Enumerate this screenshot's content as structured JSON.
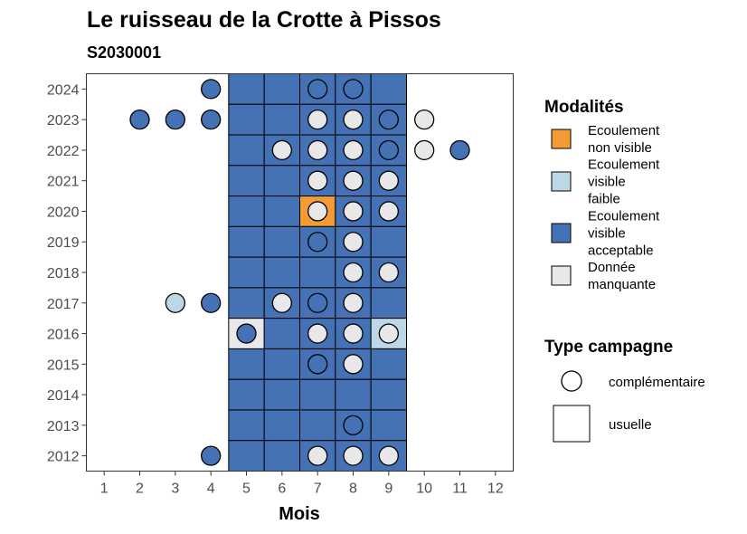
{
  "chart_data": {
    "type": "heatmap",
    "title": "Le ruisseau de la Crotte à Pissos",
    "subtitle": "S2030001",
    "xlabel": "Mois",
    "ylabel": "",
    "x_ticks": [
      "1",
      "2",
      "3",
      "4",
      "5",
      "6",
      "7",
      "8",
      "9",
      "10",
      "11",
      "12"
    ],
    "y_ticks": [
      "2012",
      "2013",
      "2014",
      "2015",
      "2016",
      "2017",
      "2018",
      "2019",
      "2020",
      "2021",
      "2022",
      "2023",
      "2024"
    ],
    "xlim": [
      0.5,
      12.5
    ],
    "ylim": [
      2011.5,
      2024.5
    ],
    "grid": false,
    "legend_placement": "right",
    "colors": {
      "non_visible": "#f39c35",
      "faible": "#bed7e6",
      "acceptable": "#4472b5",
      "manquante": "#e8e8e8"
    },
    "modalites_legend": {
      "title": "Modalités",
      "items": [
        {
          "key": "non_visible",
          "lines": [
            "Ecoulement",
            "non visible"
          ]
        },
        {
          "key": "faible",
          "lines": [
            "Ecoulement",
            "visible",
            "faible"
          ]
        },
        {
          "key": "acceptable",
          "lines": [
            "Ecoulement",
            "visible",
            "acceptable"
          ]
        },
        {
          "key": "manquante",
          "lines": [
            "Donnée",
            "manquante"
          ]
        }
      ]
    },
    "campagne_legend": {
      "title": "Type campagne",
      "items": [
        {
          "shape": "circle",
          "label": "complémentaire"
        },
        {
          "shape": "square",
          "label": "usuelle"
        }
      ]
    },
    "usuelle": [
      {
        "year": 2024,
        "cells": [
          [
            5,
            "acceptable"
          ],
          [
            6,
            "acceptable"
          ],
          [
            7,
            "acceptable"
          ],
          [
            8,
            "acceptable"
          ],
          [
            9,
            "acceptable"
          ]
        ]
      },
      {
        "year": 2023,
        "cells": [
          [
            5,
            "acceptable"
          ],
          [
            6,
            "acceptable"
          ],
          [
            7,
            "acceptable"
          ],
          [
            8,
            "acceptable"
          ],
          [
            9,
            "acceptable"
          ]
        ]
      },
      {
        "year": 2022,
        "cells": [
          [
            5,
            "acceptable"
          ],
          [
            6,
            "acceptable"
          ],
          [
            7,
            "acceptable"
          ],
          [
            8,
            "acceptable"
          ],
          [
            9,
            "acceptable"
          ]
        ]
      },
      {
        "year": 2021,
        "cells": [
          [
            5,
            "acceptable"
          ],
          [
            6,
            "acceptable"
          ],
          [
            7,
            "acceptable"
          ],
          [
            8,
            "acceptable"
          ],
          [
            9,
            "acceptable"
          ]
        ]
      },
      {
        "year": 2020,
        "cells": [
          [
            5,
            "acceptable"
          ],
          [
            6,
            "acceptable"
          ],
          [
            7,
            "non_visible"
          ],
          [
            8,
            "acceptable"
          ],
          [
            9,
            "acceptable"
          ]
        ]
      },
      {
        "year": 2019,
        "cells": [
          [
            5,
            "acceptable"
          ],
          [
            6,
            "acceptable"
          ],
          [
            7,
            "acceptable"
          ],
          [
            8,
            "acceptable"
          ],
          [
            9,
            "acceptable"
          ]
        ]
      },
      {
        "year": 2018,
        "cells": [
          [
            5,
            "acceptable"
          ],
          [
            6,
            "acceptable"
          ],
          [
            7,
            "acceptable"
          ],
          [
            8,
            "acceptable"
          ],
          [
            9,
            "acceptable"
          ]
        ]
      },
      {
        "year": 2017,
        "cells": [
          [
            5,
            "acceptable"
          ],
          [
            6,
            "acceptable"
          ],
          [
            7,
            "acceptable"
          ],
          [
            8,
            "acceptable"
          ],
          [
            9,
            "acceptable"
          ]
        ]
      },
      {
        "year": 2016,
        "cells": [
          [
            5,
            "manquante"
          ],
          [
            6,
            "acceptable"
          ],
          [
            7,
            "acceptable"
          ],
          [
            8,
            "acceptable"
          ],
          [
            9,
            "faible"
          ]
        ]
      },
      {
        "year": 2015,
        "cells": [
          [
            5,
            "acceptable"
          ],
          [
            6,
            "acceptable"
          ],
          [
            7,
            "acceptable"
          ],
          [
            8,
            "acceptable"
          ],
          [
            9,
            "acceptable"
          ]
        ]
      },
      {
        "year": 2014,
        "cells": [
          [
            5,
            "acceptable"
          ],
          [
            6,
            "acceptable"
          ],
          [
            7,
            "acceptable"
          ],
          [
            8,
            "acceptable"
          ],
          [
            9,
            "acceptable"
          ]
        ]
      },
      {
        "year": 2013,
        "cells": [
          [
            5,
            "acceptable"
          ],
          [
            6,
            "acceptable"
          ],
          [
            7,
            "acceptable"
          ],
          [
            8,
            "acceptable"
          ],
          [
            9,
            "acceptable"
          ]
        ]
      },
      {
        "year": 2012,
        "cells": [
          [
            5,
            "acceptable"
          ],
          [
            6,
            "acceptable"
          ],
          [
            7,
            "acceptable"
          ],
          [
            8,
            "acceptable"
          ],
          [
            9,
            "acceptable"
          ]
        ]
      }
    ],
    "complementaire": [
      {
        "year": 2024,
        "points": [
          [
            4,
            "acceptable"
          ],
          [
            7,
            "acceptable"
          ],
          [
            8,
            "acceptable"
          ]
        ]
      },
      {
        "year": 2023,
        "points": [
          [
            2,
            "acceptable"
          ],
          [
            3,
            "acceptable"
          ],
          [
            4,
            "acceptable"
          ],
          [
            7,
            "manquante"
          ],
          [
            8,
            "manquante"
          ],
          [
            9,
            "acceptable"
          ],
          [
            10,
            "manquante"
          ]
        ]
      },
      {
        "year": 2022,
        "points": [
          [
            6,
            "manquante"
          ],
          [
            7,
            "manquante"
          ],
          [
            8,
            "manquante"
          ],
          [
            9,
            "acceptable"
          ],
          [
            10,
            "manquante"
          ],
          [
            11,
            "acceptable"
          ]
        ]
      },
      {
        "year": 2021,
        "points": [
          [
            7,
            "manquante"
          ],
          [
            8,
            "manquante"
          ],
          [
            9,
            "manquante"
          ]
        ]
      },
      {
        "year": 2020,
        "points": [
          [
            7,
            "manquante"
          ],
          [
            8,
            "manquante"
          ],
          [
            9,
            "manquante"
          ]
        ]
      },
      {
        "year": 2019,
        "points": [
          [
            7,
            "acceptable"
          ],
          [
            8,
            "manquante"
          ]
        ]
      },
      {
        "year": 2018,
        "points": [
          [
            8,
            "manquante"
          ],
          [
            9,
            "manquante"
          ]
        ]
      },
      {
        "year": 2017,
        "points": [
          [
            3,
            "faible"
          ],
          [
            4,
            "acceptable"
          ],
          [
            6,
            "manquante"
          ],
          [
            7,
            "acceptable"
          ],
          [
            8,
            "manquante"
          ]
        ]
      },
      {
        "year": 2016,
        "points": [
          [
            5,
            "acceptable"
          ],
          [
            7,
            "manquante"
          ],
          [
            8,
            "manquante"
          ],
          [
            9,
            "manquante"
          ]
        ]
      },
      {
        "year": 2015,
        "points": [
          [
            7,
            "acceptable"
          ],
          [
            8,
            "manquante"
          ]
        ]
      },
      {
        "year": 2014,
        "points": []
      },
      {
        "year": 2013,
        "points": [
          [
            8,
            "acceptable"
          ]
        ]
      },
      {
        "year": 2012,
        "points": [
          [
            4,
            "acceptable"
          ],
          [
            7,
            "manquante"
          ],
          [
            8,
            "manquante"
          ],
          [
            9,
            "manquante"
          ]
        ]
      }
    ]
  }
}
